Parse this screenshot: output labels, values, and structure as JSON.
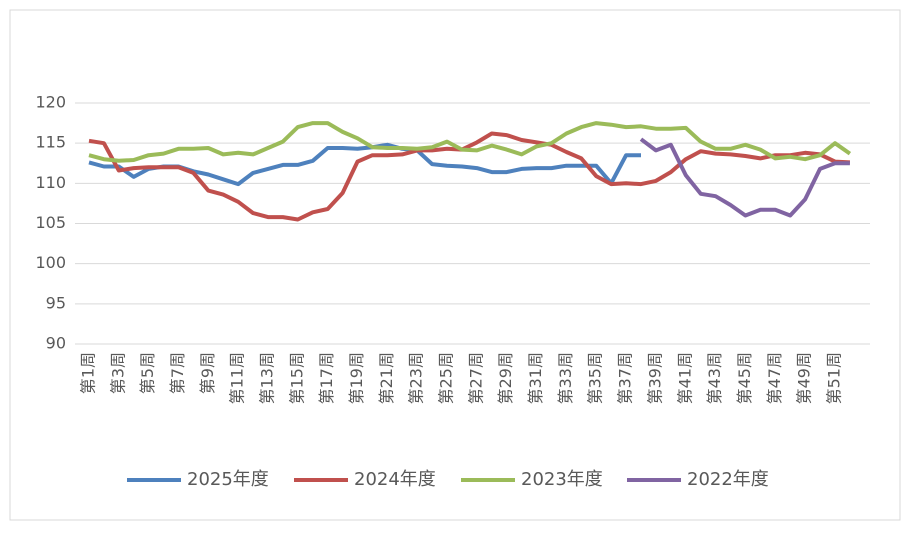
{
  "chart_data": {
    "type": "line",
    "categories": [
      "第1周",
      null,
      "第3周",
      null,
      "第5周",
      null,
      "第7周",
      null,
      "第9周",
      null,
      "第11周",
      null,
      "第13周",
      null,
      "第15周",
      null,
      "第17周",
      null,
      "第19周",
      null,
      "第21周",
      null,
      "第23周",
      null,
      "第25周",
      null,
      "第27周",
      null,
      "第29周",
      null,
      "第31周",
      null,
      "第33周",
      null,
      "第35周",
      null,
      "第37周",
      null,
      "第39周",
      null,
      "第41周",
      null,
      "第43周",
      null,
      "第45周",
      null,
      "第47周",
      null,
      "第49周",
      null,
      "第51周",
      null
    ],
    "series": [
      {
        "name": "2025年度",
        "color": "#4e81bd",
        "values": [
          112.6,
          112.1,
          112.1,
          110.8,
          111.8,
          112.1,
          112.1,
          111.5,
          111.1,
          110.5,
          109.9,
          111.3,
          111.8,
          112.3,
          112.3,
          112.8,
          114.4,
          114.4,
          114.3,
          114.5,
          114.8,
          114.3,
          114.1,
          112.4,
          112.2,
          112.1,
          111.9,
          111.4,
          111.4,
          111.8,
          111.9,
          111.9,
          112.2,
          112.2,
          112.2,
          110.0,
          113.5,
          113.5,
          null,
          null,
          null,
          null,
          null,
          null,
          null,
          null,
          null,
          null,
          null,
          null,
          null,
          null
        ]
      },
      {
        "name": "2024年度",
        "color": "#c0504d",
        "values": [
          115.3,
          115.0,
          111.6,
          111.9,
          112.0,
          112.0,
          112.0,
          111.3,
          109.1,
          108.6,
          107.7,
          106.3,
          105.8,
          105.8,
          105.5,
          106.4,
          106.8,
          108.8,
          112.7,
          113.5,
          113.5,
          113.6,
          114.1,
          114.1,
          114.3,
          114.2,
          115.1,
          116.2,
          116.0,
          115.4,
          115.1,
          114.8,
          113.9,
          113.1,
          110.9,
          109.9,
          110.0,
          109.9,
          110.3,
          111.4,
          113.0,
          114.0,
          113.7,
          113.6,
          113.4,
          113.1,
          113.5,
          113.5,
          113.8,
          113.6,
          112.7,
          112.6
        ]
      },
      {
        "name": "2023年度",
        "color": "#9bbb59",
        "values": [
          113.5,
          113.0,
          112.8,
          112.9,
          113.5,
          113.7,
          114.3,
          114.3,
          114.4,
          113.6,
          113.8,
          113.6,
          114.4,
          115.2,
          117.0,
          117.5,
          117.5,
          116.4,
          115.6,
          114.5,
          114.4,
          114.4,
          114.3,
          114.5,
          115.2,
          114.2,
          114.1,
          114.7,
          114.2,
          113.6,
          114.6,
          115.0,
          116.2,
          117.0,
          117.5,
          117.3,
          117.0,
          117.1,
          116.8,
          116.8,
          116.9,
          115.2,
          114.3,
          114.3,
          114.8,
          114.2,
          113.1,
          113.3,
          113.0,
          113.5,
          115.0,
          113.7
        ]
      },
      {
        "name": "2022年度",
        "color": "#8064a2",
        "values": [
          null,
          null,
          null,
          null,
          null,
          null,
          null,
          null,
          null,
          null,
          null,
          null,
          null,
          null,
          null,
          null,
          null,
          null,
          null,
          null,
          null,
          null,
          null,
          null,
          null,
          null,
          null,
          null,
          null,
          null,
          null,
          null,
          null,
          null,
          null,
          null,
          null,
          115.5,
          114.1,
          114.8,
          111.0,
          108.7,
          108.4,
          107.3,
          106.0,
          106.7,
          106.7,
          106.0,
          108.0,
          111.8,
          112.5,
          112.5
        ]
      }
    ],
    "ylim": [
      90,
      120
    ],
    "yticks": [
      90,
      95,
      100,
      105,
      110,
      115,
      120
    ],
    "grid": true,
    "legend": "bottom"
  }
}
